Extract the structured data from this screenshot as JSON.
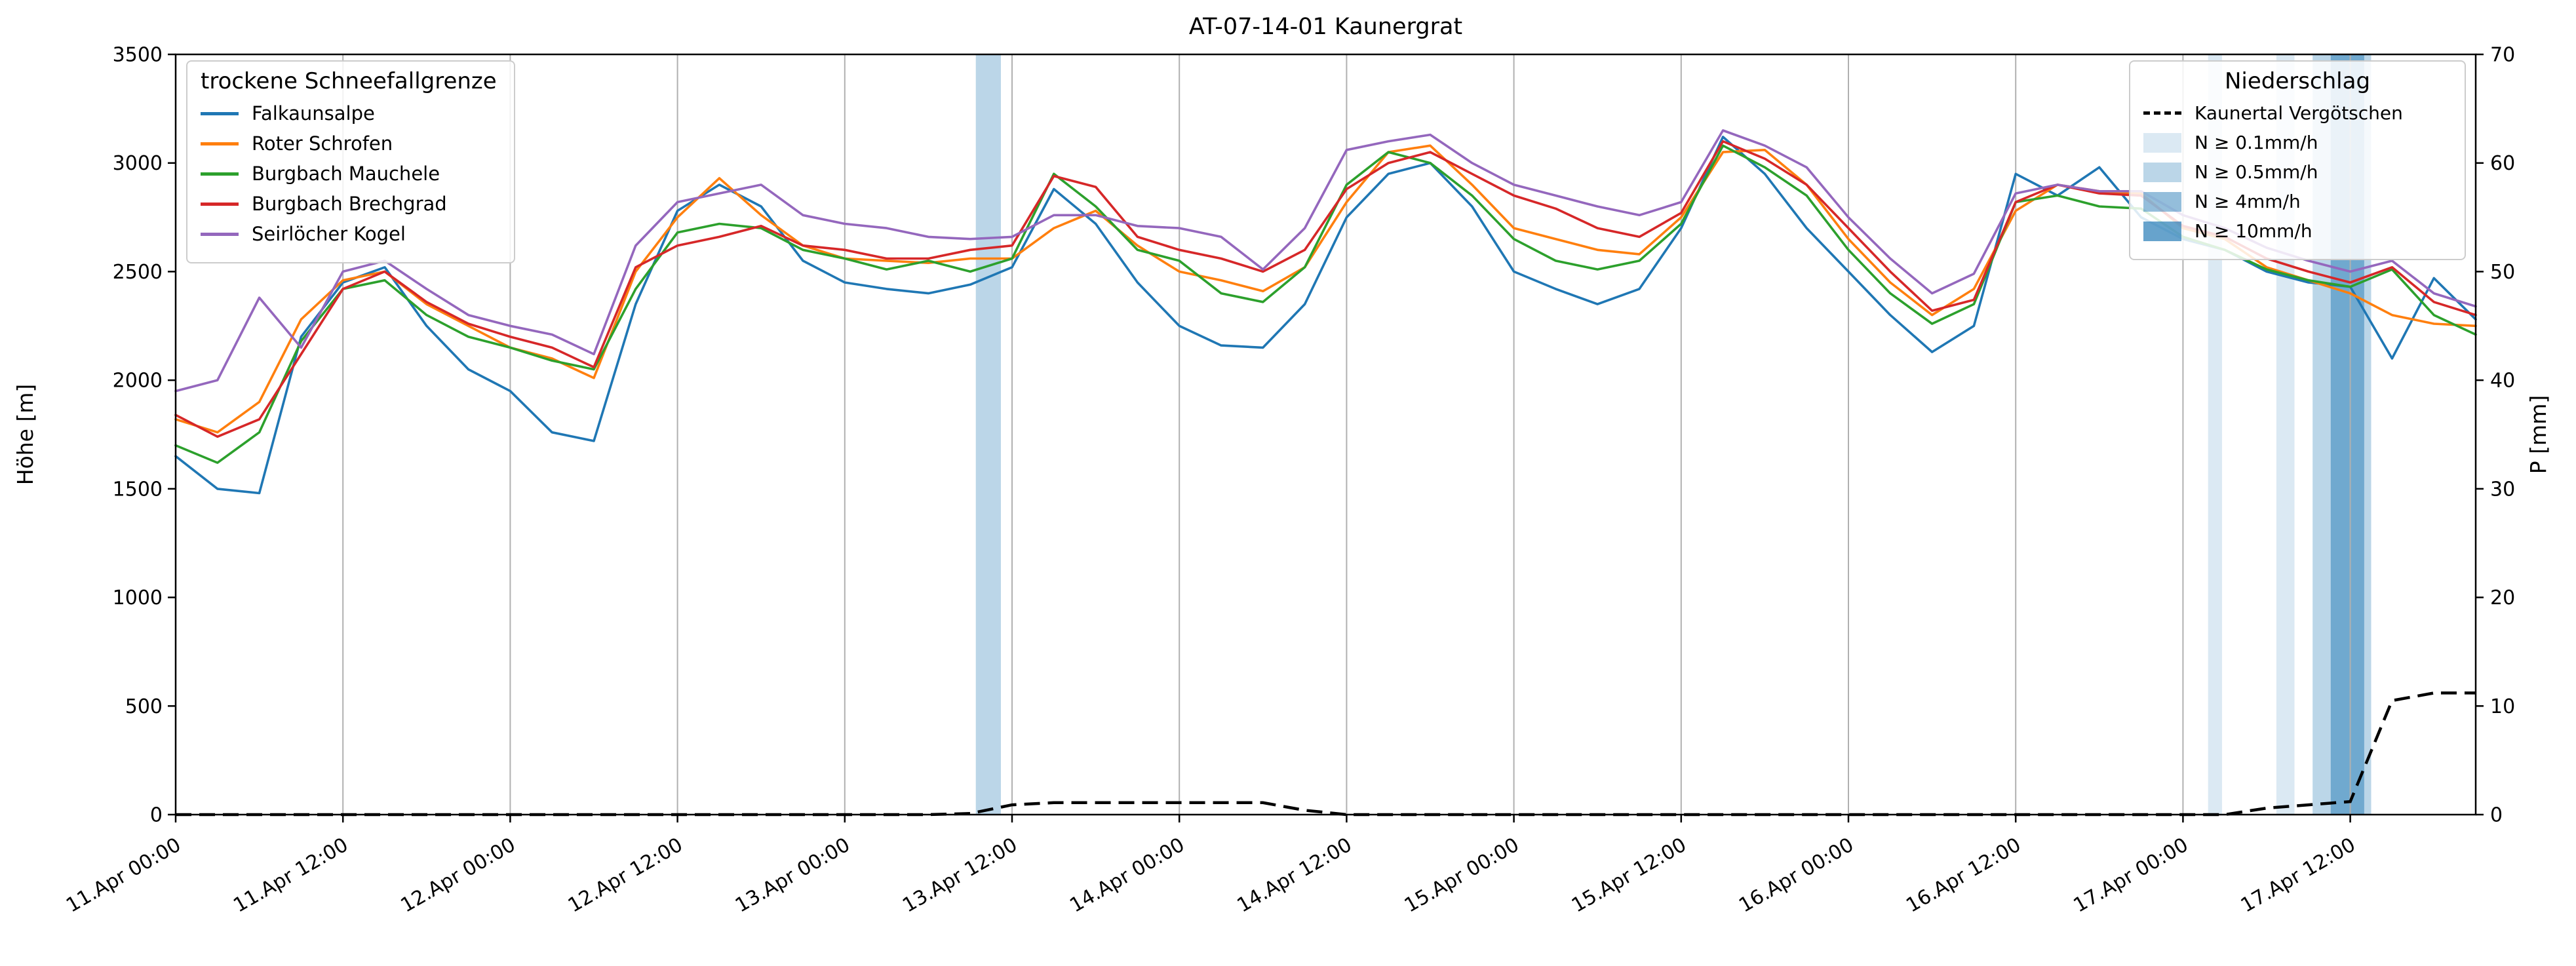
{
  "title": "AT-07-14-01 Kaunergrat",
  "axes": {
    "y_left_label": "Höhe [m]",
    "y_right_label": "P [mm]",
    "y_left_range": [
      0,
      3500
    ],
    "y_right_range": [
      0,
      70
    ],
    "y_left_ticks": [
      0,
      500,
      1000,
      1500,
      2000,
      2500,
      3000,
      3500
    ],
    "y_right_ticks": [
      0,
      10,
      20,
      30,
      40,
      50,
      60,
      70
    ],
    "x_range_hours": [
      0,
      165
    ],
    "x_tick_hours": [
      0,
      12,
      24,
      36,
      48,
      60,
      72,
      84,
      96,
      108,
      120,
      132,
      144,
      156
    ],
    "x_tick_labels": [
      "11.Apr 00:00",
      "11.Apr 12:00",
      "12.Apr 00:00",
      "12.Apr 12:00",
      "13.Apr 00:00",
      "13.Apr 12:00",
      "14.Apr 00:00",
      "14.Apr 12:00",
      "15.Apr 00:00",
      "15.Apr 12:00",
      "16.Apr 00:00",
      "16.Apr 12:00",
      "17.Apr 00:00",
      "17.Apr 12:00"
    ]
  },
  "legend_lines": {
    "title": "trockene Schneefallgrenze",
    "items": [
      {
        "label": "Falkaunsalpe",
        "color": "#1f77b4"
      },
      {
        "label": "Roter Schrofen",
        "color": "#ff7f0e"
      },
      {
        "label": "Burgbach Mauchele",
        "color": "#2ca02c"
      },
      {
        "label": "Burgbach Brechgrad",
        "color": "#d62728"
      },
      {
        "label": "Seirlöcher Kogel",
        "color": "#9467bd"
      }
    ]
  },
  "legend_precip": {
    "title": "Niederschlag",
    "line_item": "Kaunertal Vergötschen",
    "patch_items": [
      {
        "label": "N ≥ 0.1mm/h",
        "alpha": 0.16
      },
      {
        "label": "N ≥ 0.5mm/h",
        "alpha": 0.3
      },
      {
        "label": "N ≥ 4mm/h",
        "alpha": 0.48
      },
      {
        "label": "N ≥ 10mm/h",
        "alpha": 0.68
      }
    ]
  },
  "chart_data": {
    "type": "line",
    "title": "AT-07-14-01 Kaunergrat",
    "xlabel": "",
    "ylabel_left": "Höhe [m]",
    "ylabel_right": "P [mm]",
    "ylim_left": [
      0,
      3500
    ],
    "ylim_right": [
      0,
      70
    ],
    "xlim_hours": [
      0,
      165
    ],
    "grid": "vertical-only",
    "x_hours": [
      0,
      3,
      6,
      9,
      12,
      15,
      18,
      21,
      24,
      27,
      30,
      33,
      36,
      39,
      42,
      45,
      48,
      51,
      54,
      57,
      60,
      63,
      66,
      69,
      72,
      75,
      78,
      81,
      84,
      87,
      90,
      93,
      96,
      99,
      102,
      105,
      108,
      111,
      114,
      117,
      120,
      123,
      126,
      129,
      132,
      135,
      138,
      141,
      144,
      147,
      150,
      153,
      156,
      159,
      162,
      165
    ],
    "series": [
      {
        "name": "Falkaunsalpe",
        "color": "#1f77b4",
        "axis": "left",
        "values": [
          1650,
          1500,
          1480,
          2200,
          2450,
          2520,
          2250,
          2050,
          1950,
          1760,
          1720,
          2350,
          2780,
          2900,
          2800,
          2550,
          2450,
          2420,
          2400,
          2440,
          2520,
          2880,
          2720,
          2450,
          2250,
          2160,
          2150,
          2350,
          2750,
          2950,
          3000,
          2800,
          2500,
          2420,
          2350,
          2420,
          2700,
          3120,
          2950,
          2700,
          2500,
          2300,
          2130,
          2250,
          2950,
          2850,
          2980,
          2750,
          2650,
          2600,
          2500,
          2450,
          2430,
          2100,
          2470,
          2280
        ]
      },
      {
        "name": "Roter Schrofen",
        "color": "#ff7f0e",
        "axis": "left",
        "values": [
          1820,
          1760,
          1900,
          2280,
          2460,
          2500,
          2350,
          2250,
          2150,
          2100,
          2010,
          2500,
          2750,
          2930,
          2760,
          2620,
          2560,
          2550,
          2540,
          2560,
          2560,
          2700,
          2780,
          2620,
          2500,
          2460,
          2410,
          2520,
          2820,
          3050,
          3080,
          2900,
          2700,
          2650,
          2600,
          2580,
          2750,
          3050,
          3060,
          2900,
          2650,
          2450,
          2300,
          2420,
          2780,
          2900,
          2870,
          2860,
          2700,
          2650,
          2520,
          2460,
          2400,
          2300,
          2260,
          2250
        ]
      },
      {
        "name": "Burgbach Mauchele",
        "color": "#2ca02c",
        "axis": "left",
        "values": [
          1700,
          1620,
          1760,
          2180,
          2420,
          2460,
          2300,
          2200,
          2150,
          2090,
          2050,
          2420,
          2680,
          2720,
          2700,
          2600,
          2560,
          2510,
          2550,
          2500,
          2560,
          2950,
          2800,
          2600,
          2550,
          2400,
          2360,
          2520,
          2900,
          3050,
          3000,
          2850,
          2650,
          2550,
          2510,
          2550,
          2720,
          3080,
          2980,
          2850,
          2600,
          2400,
          2260,
          2350,
          2820,
          2850,
          2800,
          2790,
          2660,
          2600,
          2510,
          2460,
          2430,
          2510,
          2300,
          2210
        ]
      },
      {
        "name": "Burgbach Brechgrad",
        "color": "#d62728",
        "axis": "left",
        "values": [
          1840,
          1740,
          1820,
          2120,
          2420,
          2500,
          2360,
          2260,
          2200,
          2150,
          2060,
          2520,
          2620,
          2660,
          2710,
          2620,
          2600,
          2560,
          2560,
          2600,
          2620,
          2940,
          2890,
          2660,
          2600,
          2560,
          2500,
          2600,
          2880,
          3000,
          3050,
          2950,
          2850,
          2790,
          2700,
          2660,
          2770,
          3100,
          3020,
          2900,
          2700,
          2500,
          2320,
          2370,
          2820,
          2900,
          2860,
          2850,
          2710,
          2660,
          2560,
          2500,
          2450,
          2520,
          2360,
          2300
        ]
      },
      {
        "name": "Seirlöcher Kogel",
        "color": "#9467bd",
        "axis": "left",
        "values": [
          1950,
          2000,
          2380,
          2150,
          2500,
          2550,
          2420,
          2300,
          2250,
          2210,
          2120,
          2620,
          2820,
          2860,
          2900,
          2760,
          2720,
          2700,
          2660,
          2650,
          2660,
          2760,
          2760,
          2710,
          2700,
          2660,
          2510,
          2700,
          3060,
          3100,
          3130,
          3000,
          2900,
          2850,
          2800,
          2760,
          2820,
          3150,
          3080,
          2980,
          2750,
          2560,
          2400,
          2490,
          2860,
          2900,
          2870,
          2870,
          2760,
          2700,
          2610,
          2550,
          2500,
          2550,
          2400,
          2340
        ]
      }
    ],
    "precip_series": {
      "name": "Kaunertal Vergötschen",
      "color": "#000000",
      "style": "dashed",
      "axis": "right",
      "values": [
        0,
        0,
        0,
        0,
        0,
        0,
        0,
        0,
        0,
        0,
        0,
        0,
        0,
        0,
        0,
        0,
        0,
        0,
        0,
        0.1,
        0.9,
        1.1,
        1.1,
        1.1,
        1.1,
        1.1,
        1.1,
        0.4,
        0,
        0,
        0,
        0,
        0,
        0,
        0,
        0,
        0,
        0,
        0,
        0,
        0,
        0,
        0,
        0,
        0,
        0,
        0,
        0,
        0,
        0,
        0.6,
        0.9,
        1.2,
        10.5,
        11.2,
        11.2
      ]
    },
    "precip_band_color": "#1f77b4",
    "precip_bands": [
      {
        "start_h": 57.4,
        "end_h": 59.2,
        "level": "N ≥ 0.5mm/h",
        "level_index": 1
      },
      {
        "start_h": 145.8,
        "end_h": 146.8,
        "level": "N ≥ 0.1mm/h",
        "level_index": 0
      },
      {
        "start_h": 150.7,
        "end_h": 152.0,
        "level": "N ≥ 0.1mm/h",
        "level_index": 0
      },
      {
        "start_h": 153.3,
        "end_h": 157.5,
        "level": "N ≥ 0.5mm/h",
        "level_index": 1
      },
      {
        "start_h": 154.6,
        "end_h": 157.0,
        "level": "N ≥ 4mm/h",
        "level_index": 2
      }
    ]
  }
}
